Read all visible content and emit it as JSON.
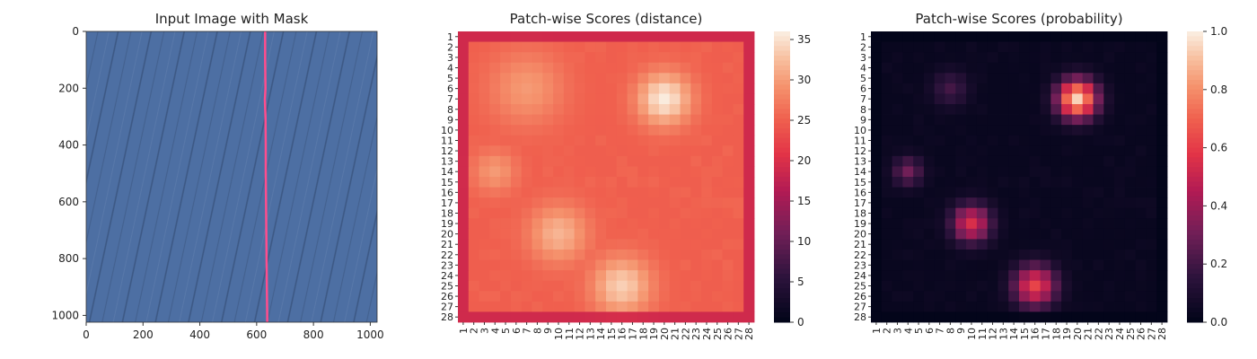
{
  "chart_data": [
    {
      "type": "image",
      "title": "Input Image with Mask",
      "xlabel": "",
      "ylabel": "",
      "x_ticks": [
        "0",
        "200",
        "400",
        "600",
        "800",
        "1000"
      ],
      "y_ticks": [
        "0",
        "200",
        "400",
        "600",
        "800",
        "1000"
      ],
      "xlim": [
        0,
        1024
      ],
      "ylim": [
        1024,
        0
      ],
      "image_color": "#4a6a9c",
      "mask_color": "#ff4d8d",
      "mask_line_x": [
        [
          0,
          630
        ],
        [
          100,
          630
        ],
        [
          200,
          631
        ],
        [
          240,
          629
        ],
        [
          300,
          631
        ],
        [
          400,
          632
        ],
        [
          500,
          632
        ],
        [
          600,
          633
        ],
        [
          700,
          634
        ],
        [
          800,
          635
        ],
        [
          900,
          636
        ],
        [
          1000,
          637
        ],
        [
          1024,
          637
        ]
      ]
    },
    {
      "type": "heatmap",
      "title": "Patch-wise Scores (distance)",
      "x_categories": [
        "1",
        "2",
        "3",
        "4",
        "5",
        "6",
        "7",
        "8",
        "9",
        "10",
        "11",
        "12",
        "13",
        "14",
        "15",
        "16",
        "17",
        "18",
        "19",
        "20",
        "21",
        "22",
        "23",
        "24",
        "25",
        "26",
        "27",
        "28"
      ],
      "y_categories": [
        "1",
        "2",
        "3",
        "4",
        "5",
        "6",
        "7",
        "8",
        "9",
        "10",
        "11",
        "12",
        "13",
        "14",
        "15",
        "16",
        "17",
        "18",
        "19",
        "20",
        "21",
        "22",
        "23",
        "24",
        "25",
        "26",
        "27",
        "28"
      ],
      "colorbar_ticks": [
        "0",
        "5",
        "10",
        "15",
        "20",
        "25",
        "30",
        "35"
      ],
      "vmin": 0,
      "vmax": 36,
      "colormap": "rocket",
      "hotspots": [
        {
          "row": 7,
          "col": 20,
          "value": 36,
          "spread": 1.8
        },
        {
          "row": 25,
          "col": 16,
          "value": 34,
          "spread": 2.0
        },
        {
          "row": 20,
          "col": 10,
          "value": 32,
          "spread": 2.0
        },
        {
          "row": 14,
          "col": 4,
          "value": 30,
          "spread": 1.5
        },
        {
          "row": 6,
          "col": 7,
          "value": 30,
          "spread": 2.5
        }
      ],
      "base_value": 25,
      "border_value": 19
    },
    {
      "type": "heatmap",
      "title": "Patch-wise Scores (probability)",
      "x_categories": [
        "1",
        "2",
        "3",
        "4",
        "5",
        "6",
        "7",
        "8",
        "9",
        "10",
        "11",
        "12",
        "13",
        "14",
        "15",
        "16",
        "17",
        "18",
        "19",
        "20",
        "21",
        "22",
        "23",
        "24",
        "25",
        "26",
        "27",
        "28"
      ],
      "y_categories": [
        "1",
        "2",
        "3",
        "4",
        "5",
        "6",
        "7",
        "8",
        "9",
        "10",
        "11",
        "12",
        "13",
        "14",
        "15",
        "16",
        "17",
        "18",
        "19",
        "20",
        "21",
        "22",
        "23",
        "24",
        "25",
        "26",
        "27",
        "28"
      ],
      "colorbar_ticks": [
        "0.0",
        "0.2",
        "0.4",
        "0.6",
        "0.8",
        "1.0"
      ],
      "vmin": 0,
      "vmax": 1,
      "colormap": "rocket",
      "hotspots": [
        {
          "row": 7,
          "col": 20,
          "value": 0.95,
          "spread": 1.3
        },
        {
          "row": 25,
          "col": 16,
          "value": 0.62,
          "spread": 1.4
        },
        {
          "row": 19,
          "col": 10,
          "value": 0.55,
          "spread": 1.3
        },
        {
          "row": 14,
          "col": 4,
          "value": 0.3,
          "spread": 1.0
        },
        {
          "row": 6,
          "col": 8,
          "value": 0.2,
          "spread": 1.2
        }
      ],
      "base_value": 0.02,
      "border_value": 0.0
    }
  ]
}
